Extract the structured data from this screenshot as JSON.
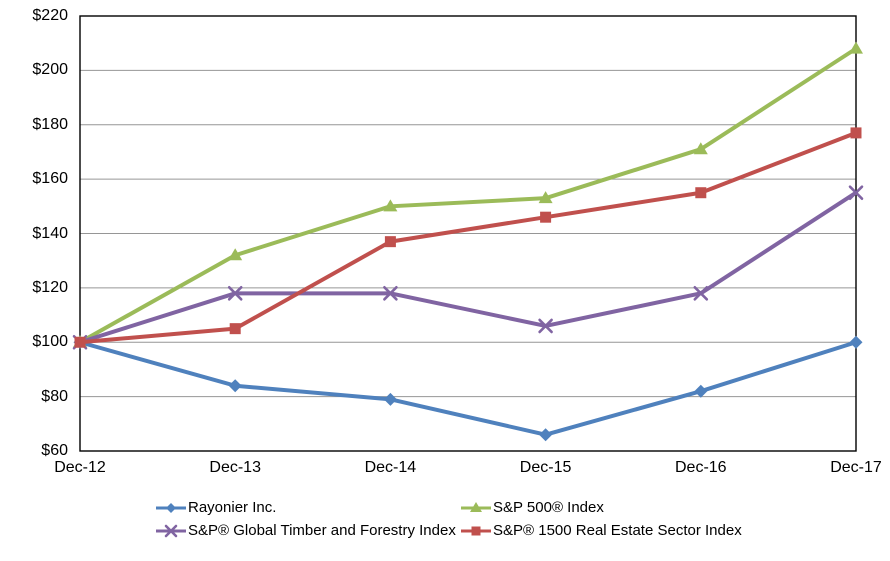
{
  "chart_data": {
    "type": "line",
    "title": "",
    "xlabel": "",
    "ylabel": "",
    "categories": [
      "Dec-12",
      "Dec-13",
      "Dec-14",
      "Dec-15",
      "Dec-16",
      "Dec-17"
    ],
    "series": [
      {
        "id": "rayonier-inc",
        "name": "Rayonier Inc.",
        "color": "#4F81BD",
        "marker": "diamond",
        "values": [
          100,
          84,
          79,
          66,
          82,
          100
        ]
      },
      {
        "id": "sp500-index",
        "name": "S&P 500® Index",
        "color": "#9BBB59",
        "marker": "triangle",
        "values": [
          100,
          132,
          150,
          153,
          171,
          208
        ]
      },
      {
        "id": "sp-global-timber-index",
        "name": "S&P® Global Timber and Forestry Index",
        "color": "#8064A2",
        "marker": "x",
        "values": [
          100,
          118,
          118,
          106,
          118,
          155
        ]
      },
      {
        "id": "sp1500-real-estate-index",
        "name": "S&P® 1500 Real Estate Sector Index",
        "color": "#C0504D",
        "marker": "square",
        "values": [
          100,
          105,
          137,
          146,
          155,
          177
        ]
      }
    ],
    "ylim": [
      60,
      220
    ],
    "ytick_step": 20,
    "ytick_labels": [
      "$60",
      "$80",
      "$100",
      "$120",
      "$140",
      "$160",
      "$180",
      "$200",
      "$220"
    ],
    "grid": true,
    "gridline_color": "#969696",
    "axis_color": "#000000",
    "background_color": "#ffffff",
    "legend_position": "bottom",
    "legend_rows": [
      [
        0,
        1
      ],
      [
        2,
        3
      ]
    ]
  }
}
